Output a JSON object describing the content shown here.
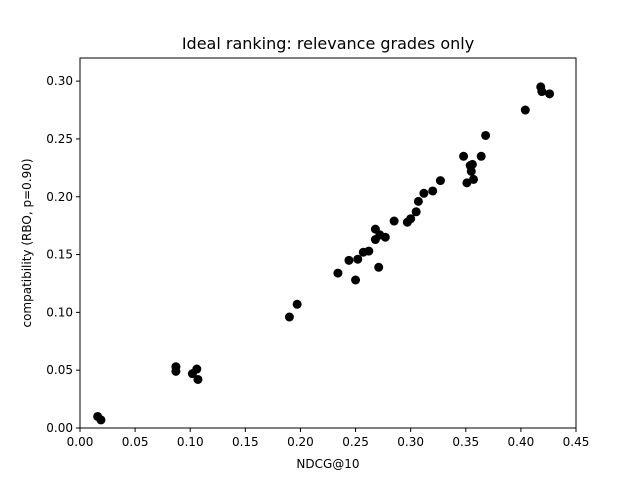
{
  "chart_data": {
    "type": "scatter",
    "title": "Ideal ranking: relevance grades only",
    "xlabel": "NDCG@10",
    "ylabel": "compatibility (RBO, p=0.90)",
    "xlim": [
      0.0,
      0.45
    ],
    "ylim": [
      0.0,
      0.32
    ],
    "xticks": [
      0.0,
      0.05,
      0.1,
      0.15,
      0.2,
      0.25,
      0.3,
      0.35,
      0.4,
      0.45
    ],
    "xtick_labels": [
      "0.00",
      "0.05",
      "0.10",
      "0.15",
      "0.20",
      "0.25",
      "0.30",
      "0.35",
      "0.40",
      "0.45"
    ],
    "yticks": [
      0.0,
      0.05,
      0.1,
      0.15,
      0.2,
      0.25,
      0.3
    ],
    "ytick_labels": [
      "0.00",
      "0.05",
      "0.10",
      "0.15",
      "0.20",
      "0.25",
      "0.30"
    ],
    "grid": false,
    "marker_color": "#000000",
    "points": [
      {
        "x": 0.016,
        "y": 0.01
      },
      {
        "x": 0.019,
        "y": 0.007
      },
      {
        "x": 0.087,
        "y": 0.053
      },
      {
        "x": 0.087,
        "y": 0.049
      },
      {
        "x": 0.102,
        "y": 0.047
      },
      {
        "x": 0.106,
        "y": 0.051
      },
      {
        "x": 0.107,
        "y": 0.042
      },
      {
        "x": 0.19,
        "y": 0.096
      },
      {
        "x": 0.197,
        "y": 0.107
      },
      {
        "x": 0.234,
        "y": 0.134
      },
      {
        "x": 0.244,
        "y": 0.145
      },
      {
        "x": 0.25,
        "y": 0.128
      },
      {
        "x": 0.252,
        "y": 0.146
      },
      {
        "x": 0.257,
        "y": 0.152
      },
      {
        "x": 0.262,
        "y": 0.153
      },
      {
        "x": 0.268,
        "y": 0.172
      },
      {
        "x": 0.268,
        "y": 0.163
      },
      {
        "x": 0.271,
        "y": 0.139
      },
      {
        "x": 0.272,
        "y": 0.167
      },
      {
        "x": 0.277,
        "y": 0.165
      },
      {
        "x": 0.285,
        "y": 0.179
      },
      {
        "x": 0.297,
        "y": 0.178
      },
      {
        "x": 0.3,
        "y": 0.181
      },
      {
        "x": 0.305,
        "y": 0.187
      },
      {
        "x": 0.307,
        "y": 0.196
      },
      {
        "x": 0.312,
        "y": 0.203
      },
      {
        "x": 0.32,
        "y": 0.205
      },
      {
        "x": 0.327,
        "y": 0.214
      },
      {
        "x": 0.348,
        "y": 0.235
      },
      {
        "x": 0.351,
        "y": 0.212
      },
      {
        "x": 0.354,
        "y": 0.227
      },
      {
        "x": 0.356,
        "y": 0.228
      },
      {
        "x": 0.355,
        "y": 0.222
      },
      {
        "x": 0.357,
        "y": 0.215
      },
      {
        "x": 0.364,
        "y": 0.235
      },
      {
        "x": 0.368,
        "y": 0.253
      },
      {
        "x": 0.404,
        "y": 0.275
      },
      {
        "x": 0.418,
        "y": 0.295
      },
      {
        "x": 0.419,
        "y": 0.291
      },
      {
        "x": 0.426,
        "y": 0.289
      }
    ]
  }
}
